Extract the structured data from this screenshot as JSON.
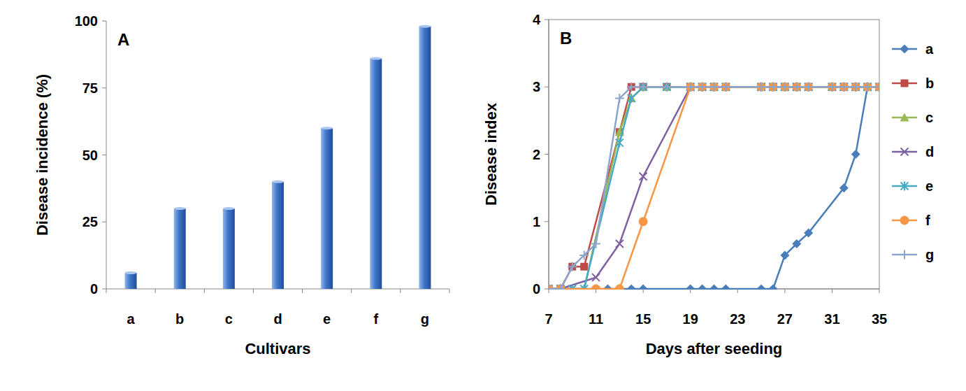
{
  "chart_data": [
    {
      "type": "bar",
      "title": "A",
      "x_label": "Cultivars",
      "y_label": "Disease incidence  (%)",
      "categories": [
        "a",
        "b",
        "c",
        "d",
        "e",
        "f",
        "g"
      ],
      "values": [
        6,
        30,
        30,
        40,
        60,
        86,
        98
      ],
      "color": "#3f74c8",
      "ylim": [
        0,
        100
      ],
      "yticks": [
        0,
        25,
        50,
        75,
        100
      ],
      "grid": false
    },
    {
      "type": "line",
      "title": "B",
      "x_label": "Days  after seeding",
      "y_label": "Disease index",
      "xlim": [
        7,
        35
      ],
      "xticks": [
        7,
        11,
        15,
        19,
        23,
        27,
        31,
        35
      ],
      "ylim": [
        0,
        4
      ],
      "yticks": [
        0,
        1,
        2,
        3,
        4
      ],
      "grid": false,
      "legend": "right",
      "series": [
        {
          "name": "a",
          "color": "#4A7EBB",
          "marker": "diamond",
          "x": [
            7,
            8,
            11,
            12,
            13,
            14,
            15,
            19,
            20,
            21,
            22,
            25,
            26,
            27,
            28,
            29,
            32,
            33,
            34,
            35
          ],
          "values": [
            0,
            0,
            0,
            0,
            0,
            0,
            0,
            0,
            0,
            0,
            0,
            0,
            0,
            0.5,
            0.67,
            0.83,
            1.5,
            2,
            3,
            3
          ]
        },
        {
          "name": "b",
          "color": "#BE4B48",
          "marker": "square",
          "x": [
            7,
            8,
            9,
            10,
            13,
            14,
            15,
            17,
            19,
            20,
            21,
            22,
            25,
            26,
            27,
            28,
            29,
            31,
            32,
            33,
            34,
            35
          ],
          "values": [
            0,
            0,
            0.33,
            0.33,
            2.33,
            3,
            3,
            3,
            3,
            3,
            3,
            3,
            3,
            3,
            3,
            3,
            3,
            3,
            3,
            3,
            3,
            3
          ]
        },
        {
          "name": "c",
          "color": "#98B954",
          "marker": "triangle",
          "x": [
            7,
            8,
            9,
            10,
            13,
            14,
            15,
            17,
            19,
            20,
            21,
            22,
            25,
            26,
            27,
            28,
            29,
            31,
            32,
            33,
            34,
            35
          ],
          "values": [
            0,
            0,
            0,
            0,
            2.33,
            2.83,
            3,
            3,
            3,
            3,
            3,
            3,
            3,
            3,
            3,
            3,
            3,
            3,
            3,
            3,
            3,
            3
          ]
        },
        {
          "name": "d",
          "color": "#7D60A0",
          "marker": "x",
          "x": [
            7,
            8,
            11,
            13,
            15,
            19,
            20,
            21,
            22,
            25,
            26,
            27,
            28,
            29,
            31,
            32,
            33,
            34,
            35
          ],
          "values": [
            0,
            0,
            0.17,
            0.67,
            1.67,
            3,
            3,
            3,
            3,
            3,
            3,
            3,
            3,
            3,
            3,
            3,
            3,
            3,
            3
          ]
        },
        {
          "name": "e",
          "color": "#46AAC5",
          "marker": "star",
          "x": [
            7,
            8,
            9,
            10,
            13,
            14,
            15,
            17,
            19,
            20,
            21,
            22,
            25,
            26,
            27,
            28,
            29,
            31,
            32,
            33,
            34,
            35
          ],
          "values": [
            0,
            0,
            0,
            0,
            2.17,
            2.83,
            3,
            3,
            3,
            3,
            3,
            3,
            3,
            3,
            3,
            3,
            3,
            3,
            3,
            3,
            3,
            3
          ]
        },
        {
          "name": "f",
          "color": "#F79646",
          "marker": "circle",
          "x": [
            7,
            8,
            11,
            13,
            15,
            19,
            20,
            21,
            22,
            25,
            26,
            27,
            28,
            29,
            31,
            32,
            33,
            34,
            35
          ],
          "values": [
            0,
            0,
            0,
            0,
            1,
            3,
            3,
            3,
            3,
            3,
            3,
            3,
            3,
            3,
            3,
            3,
            3,
            3,
            3
          ]
        },
        {
          "name": "g",
          "color": "#8EA5CB",
          "marker": "plus",
          "x": [
            7,
            8,
            9,
            10,
            11,
            13,
            14,
            15,
            17,
            19,
            20,
            21,
            22,
            25,
            26,
            27,
            28,
            29,
            31,
            32,
            33,
            34,
            35
          ],
          "values": [
            0,
            0,
            0.33,
            0.5,
            0.67,
            2.83,
            3,
            3,
            3,
            3,
            3,
            3,
            3,
            3,
            3,
            3,
            3,
            3,
            3,
            3,
            3,
            3,
            3
          ]
        }
      ]
    }
  ]
}
